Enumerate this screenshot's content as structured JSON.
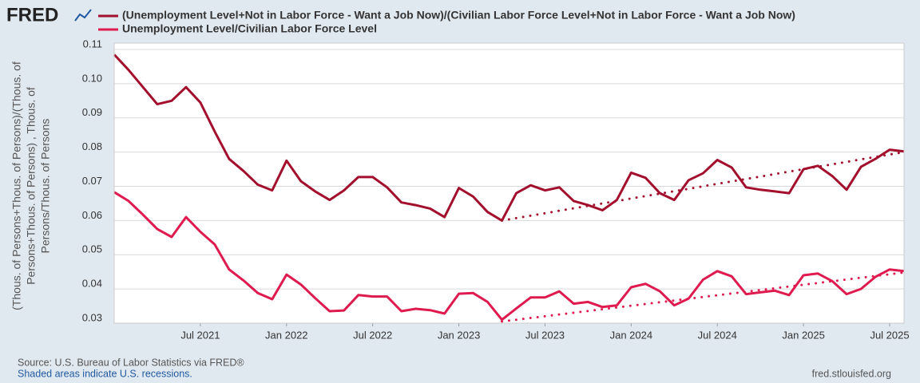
{
  "chart_data": {
    "type": "line",
    "logo": "FRED",
    "source": "Source: U.S. Bureau of Labor Statistics via FRED®",
    "note": "Shaded areas indicate U.S. recessions.",
    "url": "fred.stlouisfed.org",
    "y_label_lines": [
      "(Thous. of Persons+Thous. of Persons)/(Thous. of",
      "Persons+Thous. of Persons) , Thous. of",
      "Persons/Thous. of Persons"
    ],
    "x": [
      "2021-01",
      "2021-02",
      "2021-03",
      "2021-04",
      "2021-05",
      "2021-06",
      "2021-07",
      "2021-08",
      "2021-09",
      "2021-10",
      "2021-11",
      "2021-12",
      "2022-01",
      "2022-02",
      "2022-03",
      "2022-04",
      "2022-05",
      "2022-06",
      "2022-07",
      "2022-08",
      "2022-09",
      "2022-10",
      "2022-11",
      "2022-12",
      "2023-01",
      "2023-02",
      "2023-03",
      "2023-04",
      "2023-05",
      "2023-06",
      "2023-07",
      "2023-08",
      "2023-09",
      "2023-10",
      "2023-11",
      "2023-12",
      "2024-01",
      "2024-02",
      "2024-03",
      "2024-04",
      "2024-05",
      "2024-06",
      "2024-07",
      "2024-08",
      "2024-09",
      "2024-10",
      "2024-11",
      "2024-12",
      "2025-01",
      "2025-02",
      "2025-03",
      "2025-04",
      "2025-05",
      "2025-06",
      "2025-07",
      "2025-08"
    ],
    "series": [
      {
        "name": "(Unemployment Level+Not in Labor Force - Want a Job Now)/(Civilian Labor Force Level+Not in Labor Force - Want a Job Now)",
        "color": "#a3102e",
        "values": [
          0.1085,
          0.104,
          0.099,
          0.094,
          0.095,
          0.099,
          0.0945,
          0.086,
          0.078,
          0.0745,
          0.0705,
          0.0688,
          0.0775,
          0.0715,
          0.0685,
          0.066,
          0.0688,
          0.0727,
          0.0727,
          0.0697,
          0.0653,
          0.0645,
          0.0635,
          0.061,
          0.0695,
          0.067,
          0.0625,
          0.06,
          0.068,
          0.0703,
          0.0688,
          0.0697,
          0.0657,
          0.0645,
          0.063,
          0.066,
          0.074,
          0.0725,
          0.068,
          0.066,
          0.0718,
          0.0738,
          0.0777,
          0.0755,
          0.0697,
          0.069,
          0.0685,
          0.068,
          0.075,
          0.076,
          0.073,
          0.069,
          0.0757,
          0.078,
          0.0807,
          0.0802
        ],
        "trend": {
          "x": [
            "2023-04",
            "2025-08"
          ],
          "values": [
            0.06,
            0.08
          ]
        }
      },
      {
        "name": "Unemployment Level/Civilian Labor Force Level",
        "color": "#de1a4e",
        "values": [
          0.0683,
          0.0657,
          0.0617,
          0.0575,
          0.0552,
          0.061,
          0.0567,
          0.053,
          0.0457,
          0.0425,
          0.0388,
          0.037,
          0.0442,
          0.0413,
          0.0373,
          0.0335,
          0.0337,
          0.0382,
          0.0378,
          0.0378,
          0.0335,
          0.0342,
          0.0338,
          0.0328,
          0.0386,
          0.0388,
          0.0362,
          0.031,
          0.0343,
          0.0375,
          0.0375,
          0.0393,
          0.0357,
          0.0362,
          0.0347,
          0.0352,
          0.0405,
          0.0415,
          0.0393,
          0.0352,
          0.0372,
          0.0427,
          0.0452,
          0.0437,
          0.0385,
          0.039,
          0.0395,
          0.0382,
          0.044,
          0.0445,
          0.0423,
          0.0385,
          0.04,
          0.0435,
          0.0457,
          0.0452
        ],
        "trend": {
          "x": [
            "2023-04",
            "2025-08"
          ],
          "values": [
            0.0305,
            0.0448
          ]
        }
      }
    ],
    "xlim": [
      "2021-01",
      "2025-08"
    ],
    "xticks": [
      {
        "value": "2021-07",
        "label": "Jul 2021"
      },
      {
        "value": "2022-01",
        "label": "Jan 2022"
      },
      {
        "value": "2022-07",
        "label": "Jul 2022"
      },
      {
        "value": "2023-01",
        "label": "Jan 2023"
      },
      {
        "value": "2023-07",
        "label": "Jul 2023"
      },
      {
        "value": "2024-01",
        "label": "Jan 2024"
      },
      {
        "value": "2024-07",
        "label": "Jul 2024"
      },
      {
        "value": "2025-01",
        "label": "Jan 2025"
      },
      {
        "value": "2025-07",
        "label": "Jul 2025"
      }
    ],
    "ylim": [
      0.03,
      0.11
    ],
    "yticks": [
      0.03,
      0.04,
      0.05,
      0.06,
      0.07,
      0.08,
      0.09,
      {
        "value": 0.1,
        "label": "0.10"
      },
      0.11
    ],
    "grid": true
  }
}
